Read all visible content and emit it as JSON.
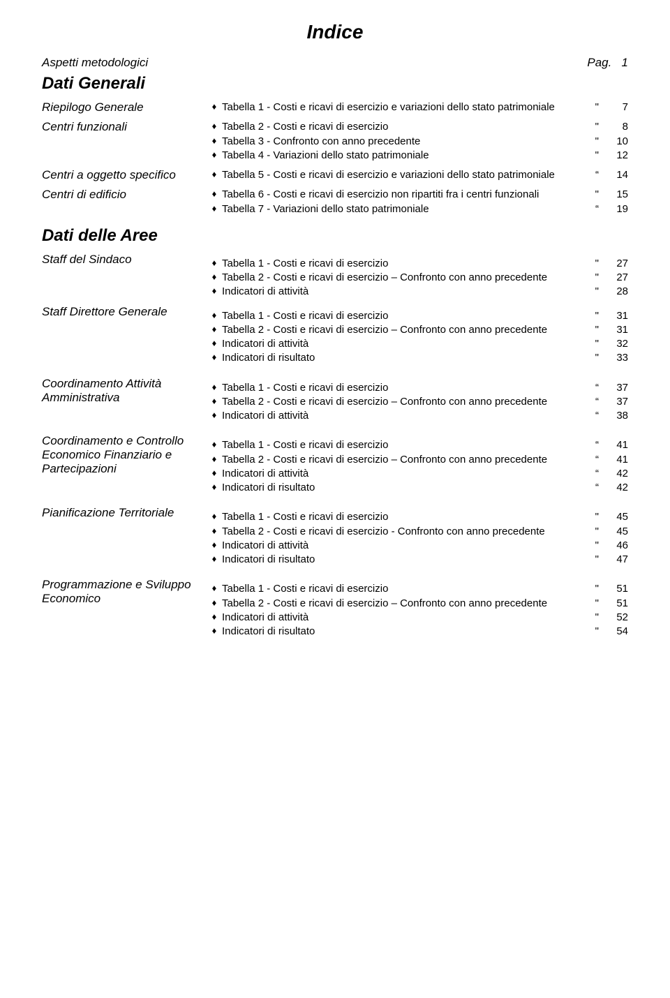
{
  "title": "Indice",
  "top": {
    "left": "Aspetti metodologici",
    "right_label": "Pag.",
    "right_page": "1"
  },
  "h1_dati_generali": "Dati Generali",
  "riepilogo": {
    "label": "Riepilogo Generale",
    "items": [
      {
        "text": "Tabella 1 - Costi e ricavi di esercizio e variazioni dello stato patrimoniale",
        "mark": "\"",
        "page": "7"
      }
    ]
  },
  "centri_funzionali": {
    "label": "Centri funzionali",
    "items": [
      {
        "text": "Tabella 2 - Costi e ricavi di esercizio",
        "mark": "\"",
        "page": "8"
      },
      {
        "text": "Tabella 3 - Confronto con anno precedente",
        "mark": "\"",
        "page": "10"
      },
      {
        "text": "Tabella 4 - Variazioni dello stato patrimoniale",
        "mark": "\"",
        "page": "12"
      }
    ]
  },
  "centri_oggetto": {
    "label": "Centri  a oggetto specifico",
    "items": [
      {
        "text": "Tabella 5 - Costi e ricavi di esercizio e variazioni dello stato patrimoniale",
        "mark": "“",
        "page": "14"
      }
    ]
  },
  "centri_edificio": {
    "label": "Centri di edificio",
    "items": [
      {
        "text": "Tabella 6 - Costi  e ricavi di esercizio non ripartiti fra i centri funzionali",
        "mark": "\"",
        "page": "15"
      },
      {
        "text": "Tabella 7 - Variazioni dello stato patrimoniale",
        "mark": "“",
        "page": "19"
      }
    ]
  },
  "h2_dati_aree": "Dati delle Aree",
  "staff_sindaco": {
    "label": "Staff del Sindaco",
    "items": [
      {
        "text": "Tabella 1 - Costi e ricavi di esercizio",
        "mark": "\"",
        "page": "27"
      },
      {
        "text": "Tabella 2 - Costi e ricavi di esercizio – Confronto con anno precedente",
        "mark": "\"",
        "page": "27"
      },
      {
        "text": "Indicatori di attività",
        "mark": "\"",
        "page": "28"
      }
    ]
  },
  "staff_direttore": {
    "label": "Staff Direttore Generale",
    "items": [
      {
        "text": "Tabella 1 - Costi e ricavi di esercizio",
        "mark": "\"",
        "page": "31"
      },
      {
        "text": "Tabella 2 - Costi e ricavi di esercizio – Confronto con anno precedente",
        "mark": "\"",
        "page": "31"
      },
      {
        "text": "Indicatori di attività",
        "mark": "\"",
        "page": "32"
      },
      {
        "text": "Indicatori di risultato",
        "mark": "\"",
        "page": "33"
      }
    ]
  },
  "coord_amm": {
    "label": "Coordinamento Attività Amministrativa",
    "items": [
      {
        "text": "Tabella 1 - Costi e ricavi di esercizio",
        "mark": "“",
        "page": "37"
      },
      {
        "text": "Tabella 2 - Costi e ricavi di esercizio – Confronto con anno precedente",
        "mark": "“",
        "page": "37"
      },
      {
        "text": "Indicatori di attività",
        "mark": "“",
        "page": "38"
      }
    ]
  },
  "coord_econ": {
    "label": "Coordinamento e Controllo Economico Finanziario e Partecipazioni",
    "items": [
      {
        "text": "Tabella 1 - Costi e ricavi di esercizio",
        "mark": "“",
        "page": "41"
      },
      {
        "text": "Tabella 2 - Costi e ricavi di esercizio – Confronto con anno precedente",
        "mark": "“",
        "page": "41"
      },
      {
        "text": "Indicatori di attività",
        "mark": "“",
        "page": "42"
      },
      {
        "text": "Indicatori di risultato",
        "mark": "“",
        "page": "42"
      }
    ]
  },
  "pianif_terr": {
    "label": "Pianificazione Territoriale",
    "items": [
      {
        "text": "Tabella 1 - Costi e ricavi di esercizio",
        "mark": "\"",
        "page": "45"
      },
      {
        "text": "Tabella 2 - Costi e ricavi di esercizio - Confronto con anno precedente",
        "mark": "\"",
        "page": "45"
      },
      {
        "text": "Indicatori di attività",
        "mark": "\"",
        "page": "46"
      },
      {
        "text": "Indicatori di risultato",
        "mark": "\"",
        "page": "47"
      }
    ]
  },
  "prog_econ": {
    "label": "Programmazione e Sviluppo Economico",
    "items": [
      {
        "text": "Tabella 1 - Costi e ricavi di esercizio",
        "mark": "\"",
        "page": "51"
      },
      {
        "text": "Tabella 2 - Costi e ricavi di esercizio – Confronto con anno precedente",
        "mark": "\"",
        "page": "51"
      },
      {
        "text": "Indicatori di attività",
        "mark": "\"",
        "page": "52"
      },
      {
        "text": "Indicatori di risultato",
        "mark": "\"",
        "page": "54"
      }
    ]
  }
}
